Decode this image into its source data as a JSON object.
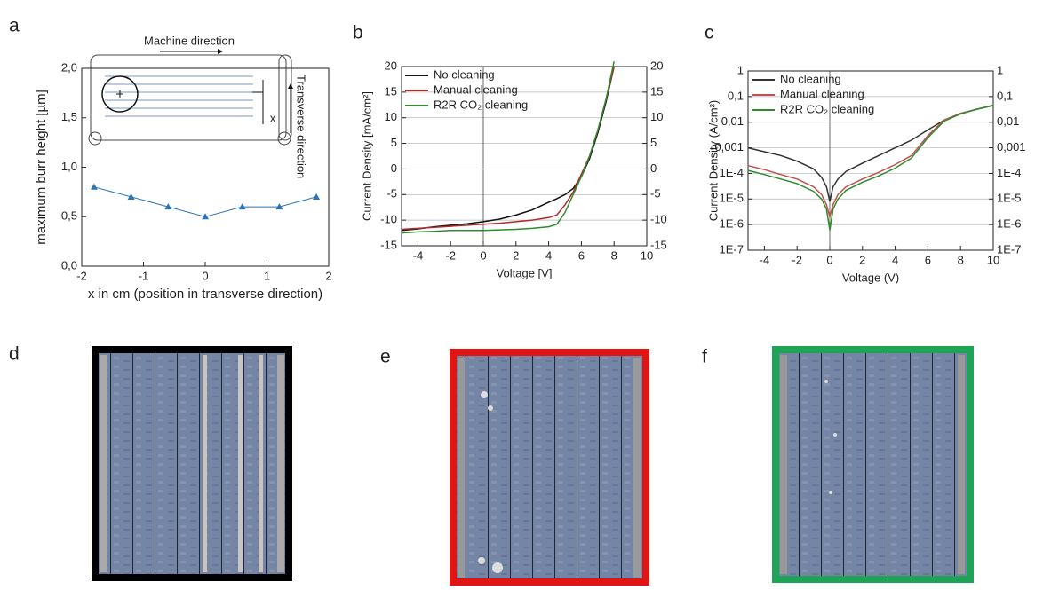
{
  "panel_labels": [
    "a",
    "b",
    "c",
    "d",
    "e",
    "f"
  ],
  "chart_data": [
    {
      "type": "line",
      "marker": "triangle",
      "color": "#2e75b6",
      "x": [
        -1.8,
        -1.2,
        -0.6,
        0,
        0.6,
        1.2,
        1.8
      ],
      "values": [
        0.8,
        0.7,
        0.6,
        0.5,
        0.6,
        0.6,
        0.7
      ],
      "xlabel": "x in cm (position in transverse direction)",
      "ylabel": "maximum burr height [µm]",
      "xlim": [
        -2,
        2
      ],
      "xticks": [
        -2,
        -1,
        0,
        1,
        2
      ],
      "ylim": [
        0,
        2
      ],
      "yticks": [
        {
          "value": 0,
          "label": "0,0"
        },
        {
          "value": 0.5,
          "label": "0,5"
        },
        {
          "value": 1,
          "label": "1,0"
        },
        {
          "value": 1.5,
          "label": "1,5"
        },
        {
          "value": 2,
          "label": "2,0"
        }
      ],
      "grid": false,
      "annotations": [
        "Machine direction",
        "Transverse direction",
        "x"
      ]
    },
    {
      "type": "line",
      "xlabel": "Voltage [V]",
      "ylabel": "Current Density [mA/cm²]",
      "x": [
        -5,
        -4,
        -3,
        -2,
        -1,
        0,
        1,
        2,
        3,
        4,
        4.5,
        5,
        5.5,
        6,
        6.5,
        7,
        7.5,
        8
      ],
      "series": [
        {
          "name": "No cleaning",
          "color": "#111111",
          "values": [
            -12,
            -11.7,
            -11.3,
            -11,
            -10.7,
            -10.3,
            -9.8,
            -9,
            -8,
            -6.5,
            -5.8,
            -5,
            -3.8,
            -1.5,
            2,
            7,
            13,
            20
          ]
        },
        {
          "name": "Manual cleaning",
          "color": "#b22a2a",
          "values": [
            -11.8,
            -11.6,
            -11.4,
            -11.2,
            -11,
            -10.8,
            -10.6,
            -10.3,
            -10,
            -9.5,
            -9,
            -7,
            -4.5,
            -1,
            2.5,
            7.5,
            13.5,
            20
          ]
        },
        {
          "name": "R2R CO₂ cleaning",
          "color": "#2e8b2e",
          "values": [
            -12.5,
            -12.3,
            -12.2,
            -12,
            -12,
            -12,
            -11.9,
            -11.8,
            -11.6,
            -11.3,
            -10.8,
            -8.5,
            -5,
            -1.5,
            2.5,
            7.5,
            13.5,
            21
          ]
        }
      ],
      "xlim": [
        -5,
        10
      ],
      "xticks": [
        -4,
        -2,
        0,
        2,
        4,
        6,
        8,
        10
      ],
      "ylim": [
        -15,
        20
      ],
      "yticks": [
        -15,
        -10,
        -5,
        0,
        5,
        10,
        15,
        20
      ],
      "y2lim": [
        -15,
        20
      ],
      "y2ticks": [
        -15,
        -10,
        -5,
        0,
        5,
        10,
        15,
        20
      ],
      "grid": true,
      "zero_line": true,
      "legend": "upper left"
    },
    {
      "type": "line",
      "y_scale": "log",
      "xlabel": "Voltage (V)",
      "ylabel": "Current Density (A/cm²)",
      "x": [
        -5,
        -4,
        -3,
        -2,
        -1,
        -0.5,
        -0.2,
        0,
        0.2,
        0.5,
        1,
        2,
        3,
        4,
        5,
        6,
        7,
        8,
        9,
        10
      ],
      "series": [
        {
          "name": "No cleaning",
          "color": "#333333",
          "values": [
            0.001,
            0.0007,
            0.0005,
            0.0003,
            0.00015,
            7e-05,
            3e-05,
            8e-06,
            3e-05,
            6e-05,
            0.00012,
            0.00025,
            0.0005,
            0.001,
            0.002,
            0.005,
            0.012,
            0.022,
            0.032,
            0.045
          ]
        },
        {
          "name": "Manual cleaning",
          "color": "#c0504d",
          "values": [
            0.0002,
            0.00014,
            9e-05,
            6e-05,
            3e-05,
            1.5e-05,
            6e-06,
            2e-06,
            6e-06,
            1.5e-05,
            3e-05,
            6e-05,
            0.00011,
            0.00022,
            0.0005,
            0.003,
            0.012,
            0.022,
            0.032,
            0.045
          ]
        },
        {
          "name": "R2R CO₂ cleaning",
          "color": "#2e8b2e",
          "values": [
            0.00013,
            9e-05,
            6e-05,
            4e-05,
            2e-05,
            1e-05,
            4e-06,
            6e-07,
            4e-06,
            1e-05,
            2.2e-05,
            4.5e-05,
            8e-05,
            0.00016,
            0.0004,
            0.0025,
            0.011,
            0.021,
            0.032,
            0.046
          ]
        }
      ],
      "xlim": [
        -5,
        10
      ],
      "xticks": [
        -4,
        -2,
        0,
        2,
        4,
        6,
        8,
        10
      ],
      "ylim": [
        1e-07,
        1
      ],
      "yticks": [
        1,
        {
          "value": 0.1,
          "label": "0,1"
        },
        {
          "value": 0.01,
          "label": "0,01"
        },
        {
          "value": 0.001,
          "label": "0,001"
        },
        {
          "value": 0.0001,
          "label": "1E-4"
        },
        {
          "value": 1e-05,
          "label": "1E-5"
        },
        {
          "value": 1e-06,
          "label": "1E-6"
        },
        {
          "value": 1e-07,
          "label": "1E-7"
        }
      ],
      "y2lim": [
        1e-07,
        1
      ],
      "y2ticks": [
        1,
        {
          "value": 0.1,
          "label": "0,1"
        },
        {
          "value": 0.01,
          "label": "0,01"
        },
        {
          "value": 0.001,
          "label": "0,001"
        },
        {
          "value": 0.0001,
          "label": "1E-4"
        },
        {
          "value": 1e-05,
          "label": "1E-5"
        },
        {
          "value": 1e-06,
          "label": "1E-6"
        },
        {
          "value": 1e-07,
          "label": "1E-7"
        }
      ],
      "grid": true,
      "zero_line": true,
      "legend": "upper left"
    }
  ]
}
